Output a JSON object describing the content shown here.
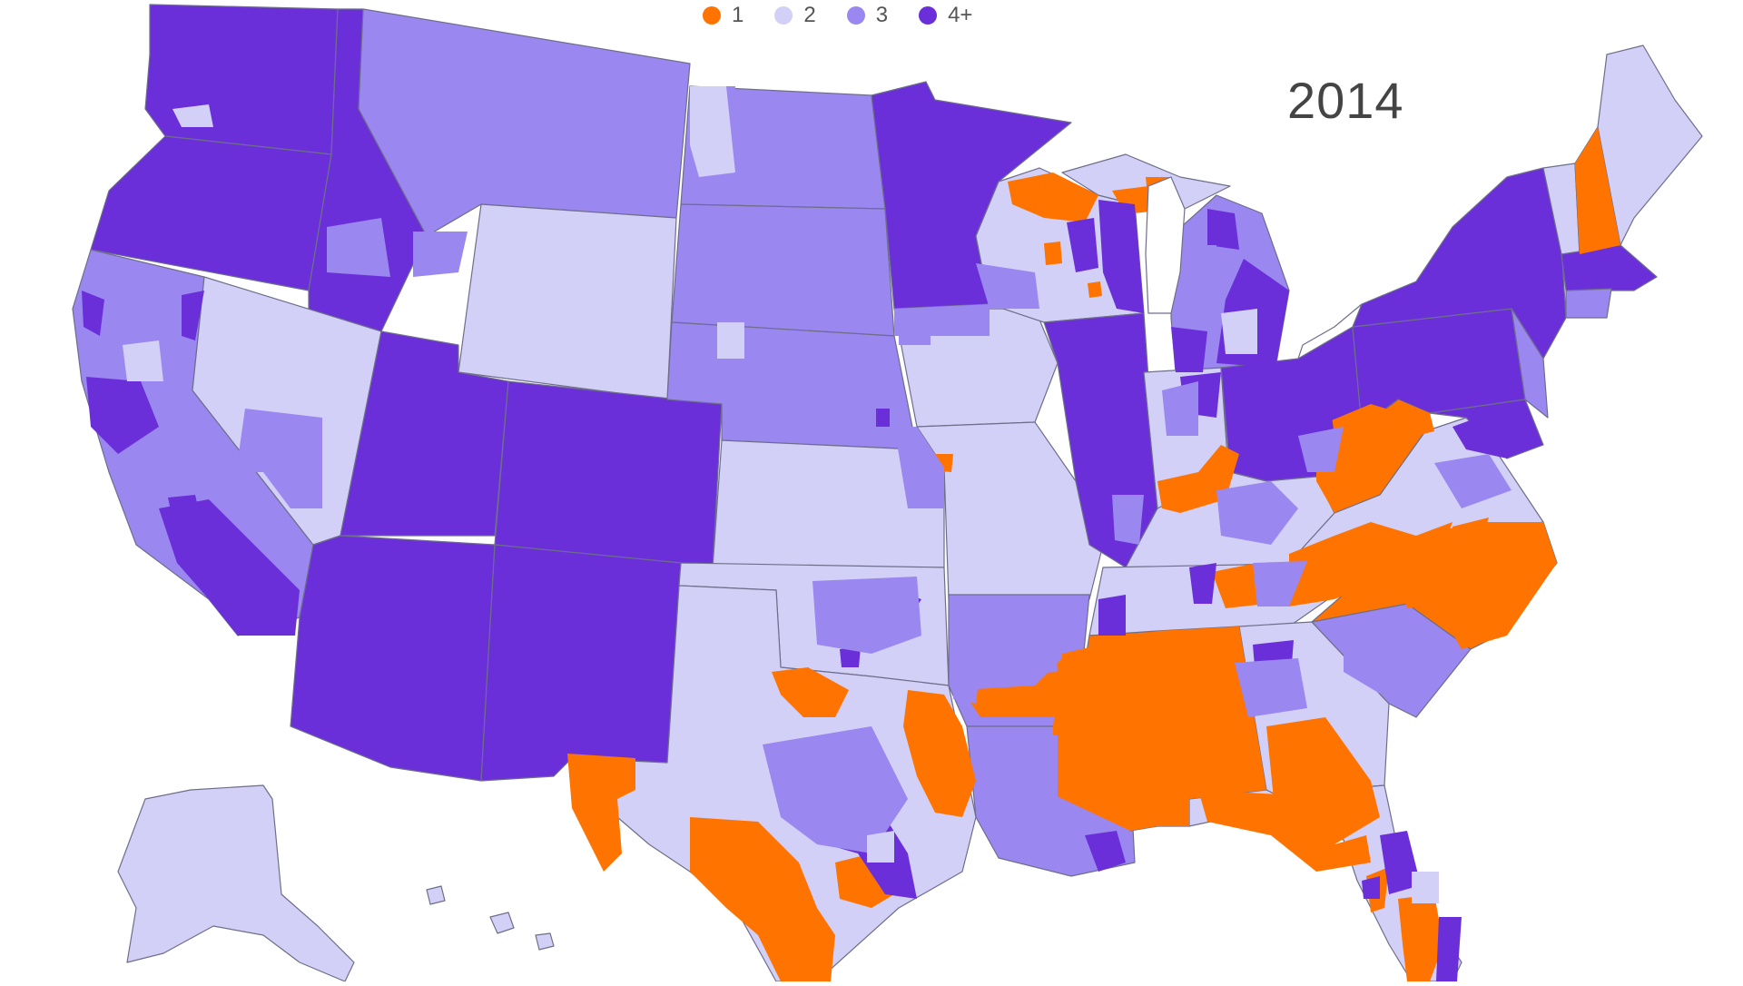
{
  "map": {
    "year": "2014",
    "legend": [
      {
        "label": "1",
        "color": "#ff7300"
      },
      {
        "label": "2",
        "color": "#d3d0f7"
      },
      {
        "label": "3",
        "color": "#9a87f0"
      },
      {
        "label": "4+",
        "color": "#6a2fd9"
      }
    ],
    "colors": {
      "one": "#ff7300",
      "two": "#d3d0f7",
      "three": "#9a87f0",
      "four_plus": "#6a2fd9",
      "background": "#ffffff",
      "border": "#6e6e8a"
    }
  }
}
